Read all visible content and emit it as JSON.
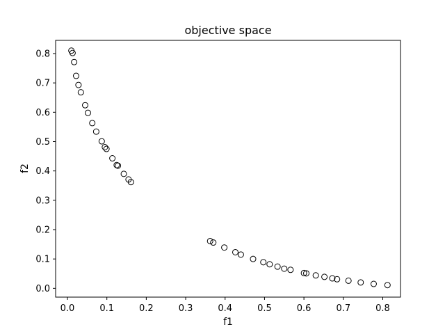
{
  "chart_data": {
    "type": "scatter",
    "title": "objective space",
    "xlabel": "f1",
    "ylabel": "f2",
    "xlim": [
      -0.03,
      0.845
    ],
    "ylim": [
      -0.03,
      0.845
    ],
    "xticks": [
      0.0,
      0.1,
      0.2,
      0.3,
      0.4,
      0.5,
      0.6,
      0.7,
      0.8
    ],
    "yticks": [
      0.0,
      0.1,
      0.2,
      0.3,
      0.4,
      0.5,
      0.6,
      0.7,
      0.8
    ],
    "tick_labels_x": [
      "0.0",
      "0.1",
      "0.2",
      "0.3",
      "0.4",
      "0.5",
      "0.6",
      "0.7",
      "0.8"
    ],
    "tick_labels_y": [
      "0.0",
      "0.1",
      "0.2",
      "0.3",
      "0.4",
      "0.5",
      "0.6",
      "0.7",
      "0.8"
    ],
    "grid": false,
    "marker": "open-circle",
    "marker_color": "#000000",
    "points": [
      {
        "x": 0.01,
        "y": 0.81
      },
      {
        "x": 0.013,
        "y": 0.802
      },
      {
        "x": 0.017,
        "y": 0.771
      },
      {
        "x": 0.022,
        "y": 0.724
      },
      {
        "x": 0.028,
        "y": 0.693
      },
      {
        "x": 0.034,
        "y": 0.668
      },
      {
        "x": 0.045,
        "y": 0.624
      },
      {
        "x": 0.052,
        "y": 0.598
      },
      {
        "x": 0.063,
        "y": 0.563
      },
      {
        "x": 0.073,
        "y": 0.534
      },
      {
        "x": 0.087,
        "y": 0.501
      },
      {
        "x": 0.095,
        "y": 0.481
      },
      {
        "x": 0.099,
        "y": 0.475
      },
      {
        "x": 0.114,
        "y": 0.443
      },
      {
        "x": 0.125,
        "y": 0.42
      },
      {
        "x": 0.128,
        "y": 0.418
      },
      {
        "x": 0.143,
        "y": 0.39
      },
      {
        "x": 0.155,
        "y": 0.371
      },
      {
        "x": 0.161,
        "y": 0.362
      },
      {
        "x": 0.362,
        "y": 0.161
      },
      {
        "x": 0.37,
        "y": 0.156
      },
      {
        "x": 0.398,
        "y": 0.139
      },
      {
        "x": 0.426,
        "y": 0.123
      },
      {
        "x": 0.44,
        "y": 0.115
      },
      {
        "x": 0.471,
        "y": 0.1
      },
      {
        "x": 0.497,
        "y": 0.089
      },
      {
        "x": 0.513,
        "y": 0.082
      },
      {
        "x": 0.533,
        "y": 0.074
      },
      {
        "x": 0.55,
        "y": 0.067
      },
      {
        "x": 0.566,
        "y": 0.063
      },
      {
        "x": 0.6,
        "y": 0.052
      },
      {
        "x": 0.606,
        "y": 0.051
      },
      {
        "x": 0.63,
        "y": 0.044
      },
      {
        "x": 0.652,
        "y": 0.039
      },
      {
        "x": 0.672,
        "y": 0.034
      },
      {
        "x": 0.684,
        "y": 0.031
      },
      {
        "x": 0.713,
        "y": 0.026
      },
      {
        "x": 0.744,
        "y": 0.02
      },
      {
        "x": 0.777,
        "y": 0.015
      },
      {
        "x": 0.812,
        "y": 0.011
      }
    ]
  }
}
